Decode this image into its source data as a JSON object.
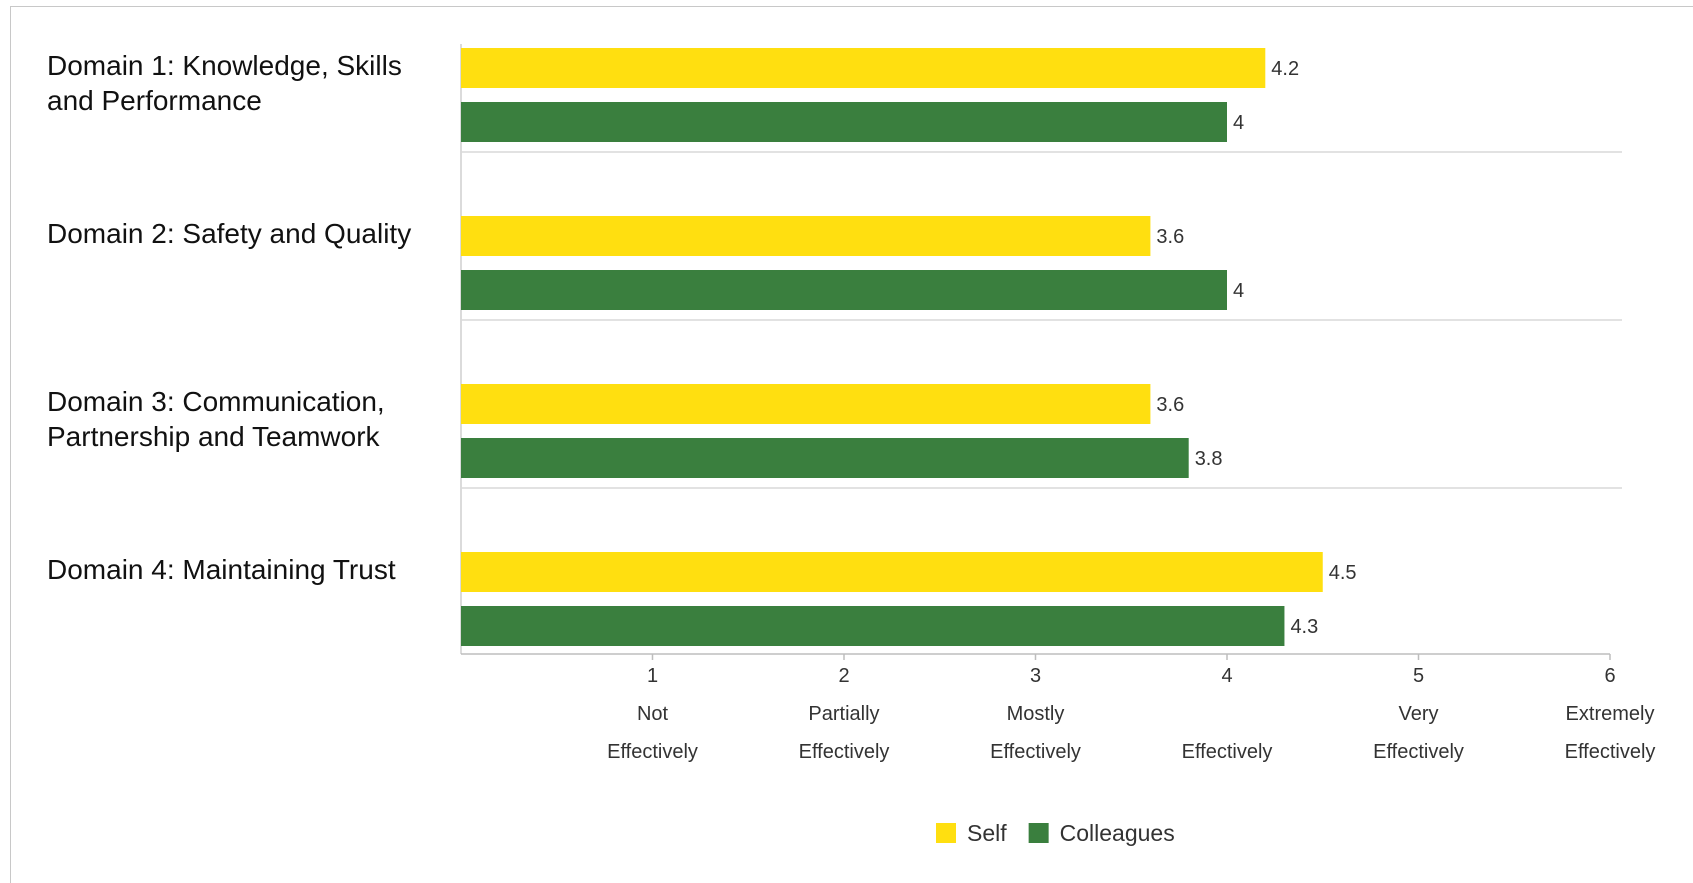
{
  "chart_data": {
    "type": "bar",
    "orientation": "horizontal",
    "categories": [
      "Domain 1: Knowledge, Skills and Performance",
      "Domain 2: Safety and Quality",
      "Domain 3: Communication, Partnership and Teamwork",
      "Domain 4: Maintaining Trust"
    ],
    "series": [
      {
        "name": "Self",
        "color": "#FFDF10",
        "values": [
          4.2,
          3.6,
          3.6,
          4.5
        ],
        "labels": [
          "4.2",
          "3.6",
          "3.6",
          "4.5"
        ]
      },
      {
        "name": "Colleagues",
        "color": "#3A7F3E",
        "values": [
          4,
          4,
          3.8,
          4.3
        ],
        "labels": [
          "4",
          "4",
          "3.8",
          "4.3"
        ]
      }
    ],
    "xlim": [
      0,
      6
    ],
    "xticks": [
      {
        "value": 1,
        "num": "1",
        "line1": "Not",
        "line2": "Effectively"
      },
      {
        "value": 2,
        "num": "2",
        "line1": "Partially",
        "line2": "Effectively"
      },
      {
        "value": 3,
        "num": "3",
        "line1": "Mostly",
        "line2": "Effectively"
      },
      {
        "value": 4,
        "num": "4",
        "line1": "",
        "line2": "Effectively"
      },
      {
        "value": 5,
        "num": "5",
        "line1": "Very",
        "line2": "Effectively"
      },
      {
        "value": 6,
        "num": "6",
        "line1": "Extremely",
        "line2": "Effectively"
      }
    ],
    "legend_position": "bottom",
    "grid": false
  }
}
